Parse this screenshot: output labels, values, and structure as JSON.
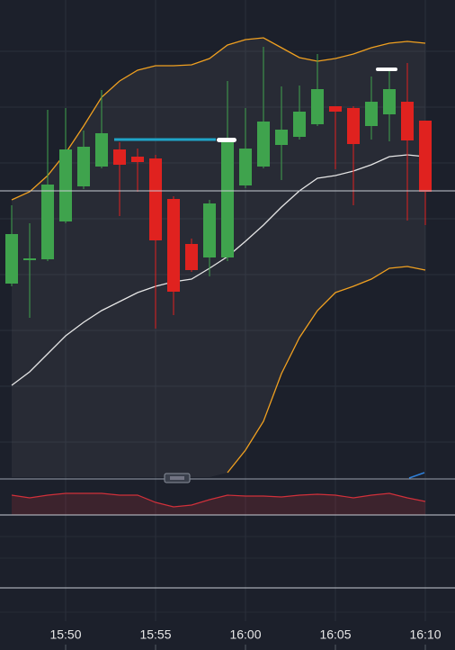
{
  "chart_data": [
    {
      "type": "candlestick",
      "categories": [
        null,
        null,
        null,
        "15:50",
        null,
        null,
        null,
        null,
        "15:55",
        null,
        null,
        null,
        null,
        "16:00",
        null,
        null,
        null,
        null,
        "16:05",
        null,
        null,
        null,
        null,
        "16:10"
      ],
      "open": [
        215,
        243,
        242,
        284,
        323,
        345,
        364,
        356,
        354,
        309,
        259,
        244,
        244,
        324,
        345,
        369,
        378,
        392,
        412,
        410,
        390,
        403,
        417,
        396
      ],
      "close": [
        270,
        243,
        325,
        364,
        367,
        382,
        347,
        350,
        263,
        206,
        230,
        304,
        377,
        365,
        395,
        386,
        406,
        431,
        406,
        370,
        417,
        431,
        374,
        317
      ],
      "high": [
        302,
        282,
        408,
        410,
        385,
        430,
        372,
        365,
        358,
        312,
        265,
        308,
        440,
        410,
        478,
        434,
        435,
        470,
        412,
        412,
        445,
        455,
        460,
        396
      ],
      "low": [
        212,
        177,
        240,
        282,
        320,
        343,
        290,
        317,
        165,
        180,
        228,
        223,
        240,
        321,
        343,
        330,
        375,
        390,
        342,
        302,
        375,
        373,
        285,
        280
      ],
      "up_color": "#3fa34d",
      "down_color": "#e0221f",
      "series": [
        {
          "color": "#f0a020",
          "values": [
            308,
            317,
            335,
            360,
            390,
            422,
            440,
            452,
            457,
            457,
            458,
            465,
            480,
            486,
            488,
            477,
            466,
            462,
            465,
            470,
            477,
            482,
            484,
            482
          ]
        },
        {
          "color": "#e6e6e6",
          "values": [
            102,
            117,
            137,
            157,
            172,
            185,
            195,
            205,
            212,
            217,
            220,
            232,
            245,
            262,
            280,
            300,
            318,
            332,
            335,
            340,
            347,
            356,
            358,
            356
          ]
        },
        {
          "color": "#f0a020",
          "values": [
            null,
            null,
            null,
            null,
            null,
            null,
            null,
            null,
            null,
            null,
            null,
            null,
            5,
            30,
            62,
            115,
            155,
            185,
            205,
            212,
            220,
            232,
            234,
            230
          ]
        }
      ],
      "ylim": [
        0,
        530
      ]
    },
    {
      "type": "line",
      "series": [
        {
          "color": "#d0303a",
          "values": [
            22,
            19,
            22,
            24,
            24,
            24,
            22,
            22,
            14,
            9,
            11,
            17,
            22,
            21,
            21,
            20,
            22,
            23,
            22,
            19,
            22,
            24,
            19,
            15
          ]
        }
      ],
      "ylim": [
        0,
        40
      ]
    }
  ]
}
